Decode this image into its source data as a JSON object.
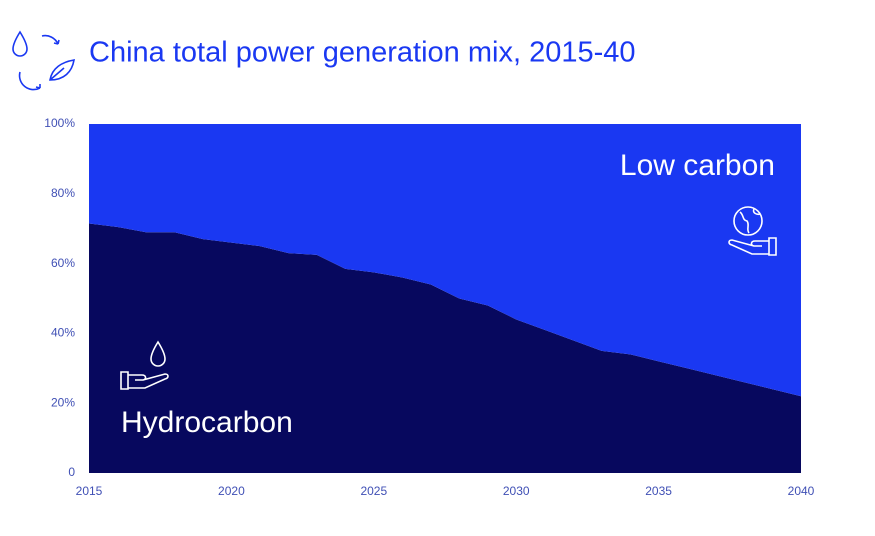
{
  "chart_data": {
    "type": "stacked_area",
    "title": "China total power generation mix, 2015-40",
    "x": [
      2015,
      2016,
      2017,
      2018,
      2019,
      2020,
      2021,
      2022,
      2023,
      2024,
      2025,
      2026,
      2027,
      2028,
      2029,
      2030,
      2031,
      2032,
      2033,
      2034,
      2035,
      2036,
      2037,
      2038,
      2039,
      2040
    ],
    "series": [
      {
        "name": "Hydrocarbon",
        "color": "#07085e",
        "values": [
          71.5,
          70.5,
          69,
          69,
          67,
          66,
          65,
          63,
          62.5,
          58.5,
          57.5,
          56,
          54,
          50,
          48,
          44,
          41,
          38,
          35,
          34,
          32,
          30,
          28,
          26,
          24,
          22
        ]
      },
      {
        "name": "Low carbon",
        "color": "#1a38f2",
        "values": [
          28.5,
          29.5,
          31,
          31,
          33,
          34,
          35,
          37,
          37.5,
          41.5,
          42.5,
          44,
          46,
          50,
          52,
          56,
          59,
          62,
          65,
          66,
          68,
          70,
          72,
          74,
          76,
          78
        ]
      }
    ],
    "xlim": [
      2015,
      2040
    ],
    "xticks": [
      2015,
      2020,
      2025,
      2030,
      2035,
      2040
    ],
    "ylim": [
      0,
      100
    ],
    "yticks": [
      0,
      {
        "value": 20,
        "label": "20%"
      },
      {
        "value": 40,
        "label": "40%"
      },
      {
        "value": 60,
        "label": "60%"
      },
      {
        "value": 80,
        "label": "80%"
      },
      {
        "value": 100,
        "label": "100%"
      }
    ]
  }
}
